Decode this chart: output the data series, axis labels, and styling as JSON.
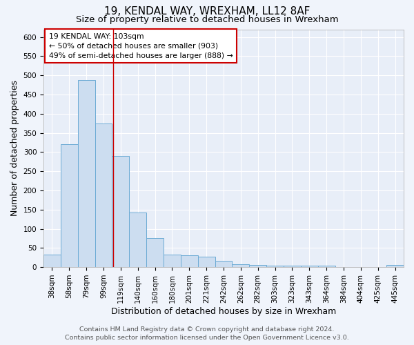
{
  "title": "19, KENDAL WAY, WREXHAM, LL12 8AF",
  "subtitle": "Size of property relative to detached houses in Wrexham",
  "xlabel": "Distribution of detached houses by size in Wrexham",
  "ylabel": "Number of detached properties",
  "categories": [
    "38sqm",
    "58sqm",
    "79sqm",
    "99sqm",
    "119sqm",
    "140sqm",
    "160sqm",
    "180sqm",
    "201sqm",
    "221sqm",
    "242sqm",
    "262sqm",
    "282sqm",
    "303sqm",
    "323sqm",
    "343sqm",
    "364sqm",
    "384sqm",
    "404sqm",
    "425sqm",
    "445sqm"
  ],
  "values": [
    33,
    321,
    487,
    374,
    289,
    143,
    75,
    33,
    30,
    28,
    16,
    7,
    5,
    4,
    3,
    4,
    4,
    0,
    0,
    0,
    6
  ],
  "bar_color": "#ccddf0",
  "bar_edge_color": "#6aaad4",
  "red_line_x": 3.55,
  "annotation_title": "19 KENDAL WAY: 103sqm",
  "annotation_line1": "← 50% of detached houses are smaller (903)",
  "annotation_line2": "49% of semi-detached houses are larger (888) →",
  "annotation_box_color": "#ffffff",
  "annotation_box_edge": "#cc0000",
  "ylim": [
    0,
    620
  ],
  "yticks": [
    0,
    50,
    100,
    150,
    200,
    250,
    300,
    350,
    400,
    450,
    500,
    550,
    600
  ],
  "footer_line1": "Contains HM Land Registry data © Crown copyright and database right 2024.",
  "footer_line2": "Contains public sector information licensed under the Open Government Licence v3.0.",
  "bg_color": "#f0f4fb",
  "plot_bg_color": "#e8eef8",
  "grid_color": "#ffffff",
  "title_fontsize": 11,
  "subtitle_fontsize": 9.5,
  "axis_label_fontsize": 9,
  "tick_fontsize": 7.5,
  "footer_fontsize": 6.8,
  "annotation_fontsize": 7.8
}
